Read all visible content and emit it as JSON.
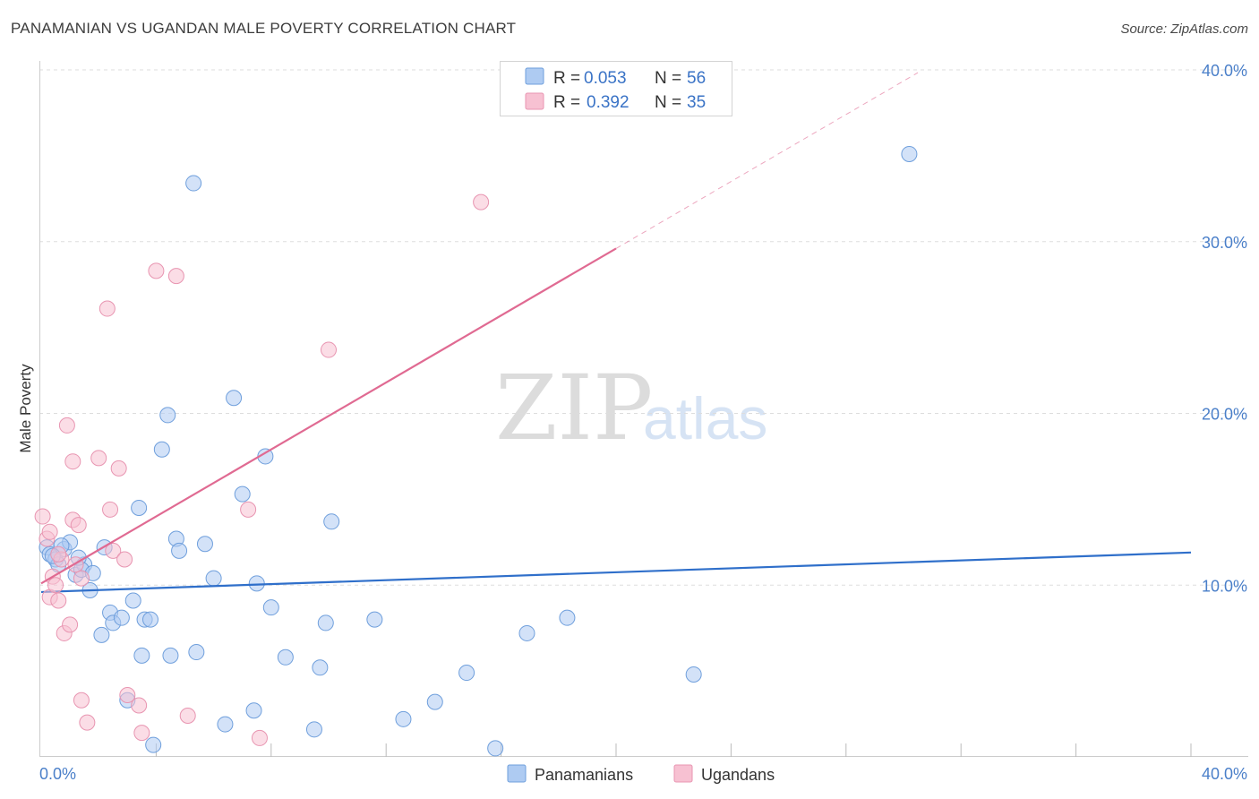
{
  "header": {
    "title": "PANAMANIAN VS UGANDAN MALE POVERTY CORRELATION CHART",
    "source": "Source: ZipAtlas.com"
  },
  "colors": {
    "blue_fill": "#aecbf2",
    "blue_stroke": "#6f9fdc",
    "blue_line": "#2f6fca",
    "pink_fill": "#f7c1d2",
    "pink_stroke": "#e895b1",
    "pink_line": "#e06a92",
    "value_text": "#3a73c6"
  },
  "chart_data": {
    "type": "scatter",
    "title": "PANAMANIAN VS UGANDAN MALE POVERTY CORRELATION CHART",
    "ylabel": "Male Poverty",
    "xlim": [
      0,
      40
    ],
    "ylim": [
      0,
      40
    ],
    "x_tick_labels": [
      "0.0%",
      "40.0%"
    ],
    "y_ticks": [
      {
        "value": 10,
        "label": "10.0%"
      },
      {
        "value": 20,
        "label": "20.0%"
      },
      {
        "value": 30,
        "label": "30.0%"
      },
      {
        "value": 40,
        "label": "40.0%"
      }
    ],
    "stats": [
      {
        "r_label": "R =",
        "r_value": "0.053",
        "n_label": "N =",
        "n_value": "56"
      },
      {
        "r_label": "R =",
        "r_value": "0.392",
        "n_label": "N =",
        "n_value": "35"
      }
    ],
    "watermark": {
      "zip": "ZIP",
      "atlas": "atlas"
    },
    "series": [
      {
        "name": "Panamanians",
        "color_key": "blue",
        "trend": {
          "x1": 0,
          "y1": 9.6,
          "x2": 40,
          "y2": 11.9,
          "dash_to_x": null
        },
        "points": [
          [
            0.2,
            12.2
          ],
          [
            0.3,
            11.8
          ],
          [
            0.5,
            11.5
          ],
          [
            0.8,
            12.1
          ],
          [
            0.6,
            11.2
          ],
          [
            1.0,
            12.5
          ],
          [
            1.2,
            10.6
          ],
          [
            1.5,
            11.2
          ],
          [
            1.4,
            10.9
          ],
          [
            1.8,
            10.7
          ],
          [
            1.7,
            9.7
          ],
          [
            2.1,
            7.1
          ],
          [
            2.4,
            8.4
          ],
          [
            2.5,
            7.8
          ],
          [
            2.8,
            8.1
          ],
          [
            3.2,
            9.1
          ],
          [
            3.4,
            14.5
          ],
          [
            3.5,
            5.9
          ],
          [
            3.6,
            8.0
          ],
          [
            3.8,
            8.0
          ],
          [
            3.0,
            3.3
          ],
          [
            3.9,
            0.7
          ],
          [
            4.2,
            17.9
          ],
          [
            4.4,
            19.9
          ],
          [
            4.5,
            5.9
          ],
          [
            4.7,
            12.7
          ],
          [
            4.8,
            12.0
          ],
          [
            5.3,
            33.4
          ],
          [
            5.4,
            6.1
          ],
          [
            5.7,
            12.4
          ],
          [
            6.0,
            10.4
          ],
          [
            6.4,
            1.9
          ],
          [
            6.7,
            20.9
          ],
          [
            7.0,
            15.3
          ],
          [
            7.4,
            2.7
          ],
          [
            7.5,
            10.1
          ],
          [
            7.8,
            17.5
          ],
          [
            8.0,
            8.7
          ],
          [
            8.5,
            5.8
          ],
          [
            9.5,
            1.6
          ],
          [
            9.7,
            5.2
          ],
          [
            9.9,
            7.8
          ],
          [
            10.1,
            13.7
          ],
          [
            11.6,
            8.0
          ],
          [
            12.6,
            2.2
          ],
          [
            13.7,
            3.2
          ],
          [
            14.8,
            4.9
          ],
          [
            15.8,
            0.5
          ],
          [
            16.9,
            7.2
          ],
          [
            18.3,
            8.1
          ],
          [
            22.7,
            4.8
          ],
          [
            30.2,
            35.1
          ],
          [
            0.7,
            12.3
          ],
          [
            1.3,
            11.6
          ],
          [
            0.4,
            11.7
          ],
          [
            2.2,
            12.2
          ]
        ]
      },
      {
        "name": "Ugandans",
        "color_key": "pink",
        "trend": {
          "x1": 0,
          "y1": 10.1,
          "x2": 20,
          "y2": 29.6,
          "dash_to_x": 30.5
        },
        "points": [
          [
            0.05,
            14.0
          ],
          [
            0.2,
            12.7
          ],
          [
            0.3,
            13.1
          ],
          [
            0.3,
            9.3
          ],
          [
            0.4,
            10.5
          ],
          [
            0.5,
            10.0
          ],
          [
            0.6,
            9.1
          ],
          [
            0.7,
            11.5
          ],
          [
            0.8,
            7.2
          ],
          [
            0.9,
            19.3
          ],
          [
            1.0,
            7.7
          ],
          [
            1.1,
            17.2
          ],
          [
            1.1,
            13.8
          ],
          [
            1.3,
            13.5
          ],
          [
            1.4,
            10.4
          ],
          [
            1.4,
            3.3
          ],
          [
            1.6,
            2.0
          ],
          [
            2.0,
            17.4
          ],
          [
            2.3,
            26.1
          ],
          [
            2.4,
            14.4
          ],
          [
            2.5,
            12.0
          ],
          [
            2.7,
            16.8
          ],
          [
            2.9,
            11.5
          ],
          [
            3.0,
            3.6
          ],
          [
            3.4,
            3.0
          ],
          [
            3.5,
            1.4
          ],
          [
            4.0,
            28.3
          ],
          [
            4.7,
            28.0
          ],
          [
            5.1,
            2.4
          ],
          [
            7.2,
            14.4
          ],
          [
            7.6,
            1.1
          ],
          [
            10.0,
            23.7
          ],
          [
            15.3,
            32.3
          ],
          [
            0.6,
            11.8
          ],
          [
            1.2,
            11.2
          ]
        ]
      }
    ]
  },
  "legend": {
    "items": [
      {
        "label": "Panamanians"
      },
      {
        "label": "Ugandans"
      }
    ]
  }
}
